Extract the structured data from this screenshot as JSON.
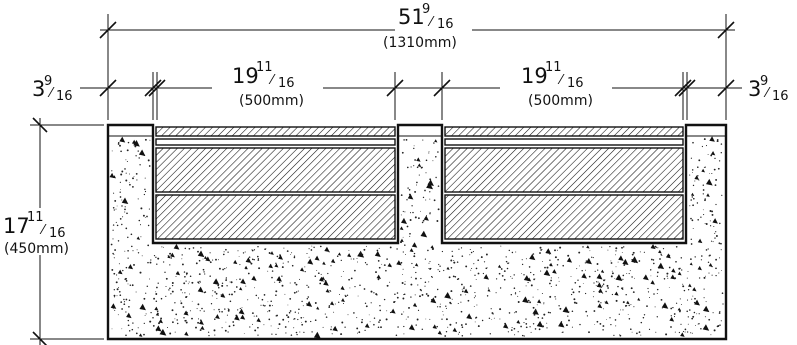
{
  "dimensions": {
    "overall_width": {
      "whole": "51",
      "num": "9",
      "den": "16",
      "metric": "(1310mm)"
    },
    "left_edge": {
      "whole": "3",
      "num": "9",
      "den": "16"
    },
    "right_edge": {
      "whole": "3",
      "num": "9",
      "den": "16"
    },
    "left_channel": {
      "whole": "19",
      "num": "11",
      "den": "16",
      "metric": "(500mm)"
    },
    "right_channel": {
      "whole": "19",
      "num": "11",
      "den": "16",
      "metric": "(500mm)"
    },
    "depth": {
      "whole": "17",
      "num": "11",
      "den": "16",
      "metric": "(450mm)"
    }
  },
  "colors": {
    "line": "#111111",
    "fill": "#ffffff"
  }
}
